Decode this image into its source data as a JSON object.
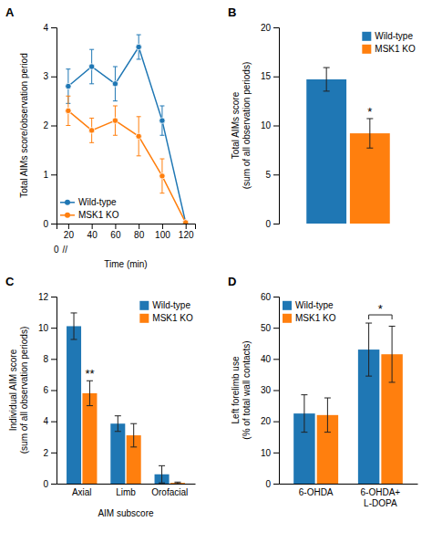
{
  "chart_data": [
    {
      "type": "line",
      "title": "A",
      "x": [
        20,
        40,
        60,
        80,
        100,
        120
      ],
      "xlabel": "Time (min)",
      "ylabel": "Total AIMs score/observation period",
      "xlim": [
        10,
        128
      ],
      "xticks": [
        20,
        40,
        60,
        80,
        100,
        120
      ],
      "ylim": [
        0,
        4
      ],
      "yticks": [
        0,
        1,
        2,
        3,
        4
      ],
      "marker": "circle",
      "legend": "lower left",
      "annotations": [
        "0",
        "//"
      ],
      "series": [
        {
          "name": "Wild-type",
          "values": [
            2.8,
            3.2,
            2.85,
            3.6,
            2.1,
            0.02
          ],
          "errors": [
            0.35,
            0.35,
            0.35,
            0.25,
            0.3,
            0.02
          ]
        },
        {
          "name": "MSK1 KO",
          "values": [
            2.3,
            1.9,
            2.1,
            1.78,
            0.97,
            0.02
          ],
          "errors": [
            0.3,
            0.25,
            0.3,
            0.4,
            0.35,
            0.02
          ]
        }
      ]
    },
    {
      "type": "bar",
      "title": "B",
      "categories": [
        null
      ],
      "ylabel": "Total AIMs score\n(sum of all observation periods)",
      "ylim": [
        0,
        20
      ],
      "yticks": [
        0,
        5,
        10,
        15,
        20
      ],
      "tick_labels": "y",
      "legend": "upper right",
      "series": [
        {
          "name": "Wild-type",
          "values": [
            14.7
          ],
          "errors": [
            1.2
          ]
        },
        {
          "name": "MSK1 KO",
          "values": [
            9.2
          ],
          "errors": [
            1.5
          ],
          "annotations": [
            "*"
          ]
        }
      ]
    },
    {
      "type": "bar",
      "title": "C",
      "categories": [
        "Axial",
        "Limb",
        "Orofacial"
      ],
      "xlabel": "AIM subscore",
      "ylabel": "Individual AIM score\n(sum of all observation periods)",
      "ylim": [
        0,
        12
      ],
      "yticks": [
        0,
        2,
        4,
        6,
        8,
        10,
        12
      ],
      "legend": "upper right",
      "series": [
        {
          "name": "Wild-type",
          "values": [
            10.1,
            3.85,
            0.6
          ],
          "errors": [
            0.85,
            0.5,
            0.55
          ]
        },
        {
          "name": "MSK1 KO",
          "values": [
            5.8,
            3.1,
            0.05
          ],
          "errors": [
            0.8,
            0.75,
            0.05
          ],
          "annotations": [
            "**",
            null,
            null
          ]
        }
      ]
    },
    {
      "type": "bar",
      "title": "D",
      "categories": [
        "6-OHDA",
        "6-OHDA+\nL-DOPA"
      ],
      "ylabel": "Left forelimb use\n(% of total wall contacts)",
      "ylim": [
        0,
        60
      ],
      "yticks": [
        0,
        10,
        20,
        30,
        40,
        50,
        60
      ],
      "legend": "upper left",
      "annotations": [
        null,
        "*"
      ],
      "series": [
        {
          "name": "Wild-type",
          "values": [
            22.5,
            43.0
          ],
          "errors": [
            6.0,
            8.5
          ]
        },
        {
          "name": "MSK1 KO",
          "values": [
            22.0,
            41.5
          ],
          "errors": [
            5.5,
            9.0
          ]
        }
      ]
    }
  ]
}
